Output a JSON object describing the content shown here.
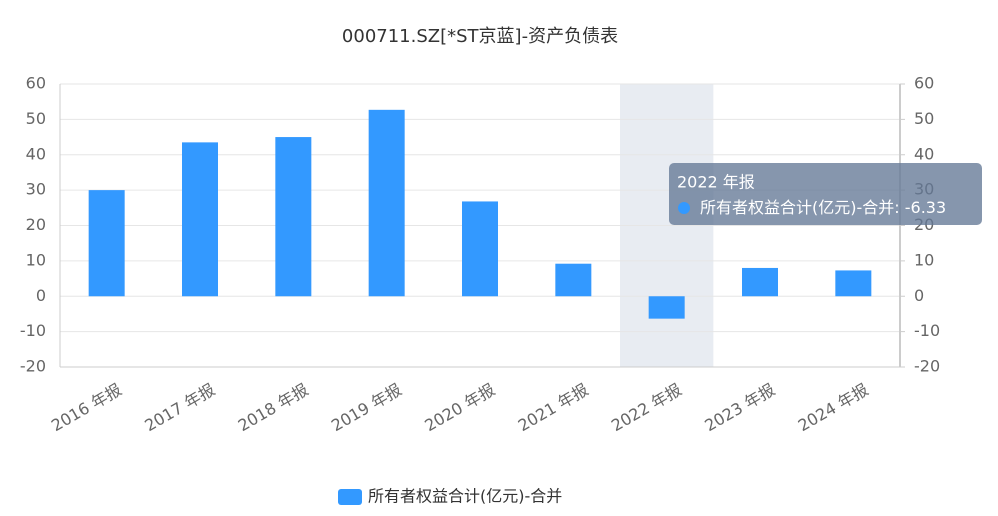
{
  "chart_data": {
    "type": "bar",
    "title": "000711.SZ[*ST京蓝]-资产负债表",
    "categories": [
      "2016 年报",
      "2017 年报",
      "2018 年报",
      "2019 年报",
      "2020 年报",
      "2021 年报",
      "2022 年报",
      "2023 年报",
      "2024 年报"
    ],
    "series": [
      {
        "name": "所有者权益合计(亿元)-合并",
        "color": "#3399ff",
        "values": [
          30,
          43.5,
          45,
          52.7,
          26.8,
          9.2,
          -6.33,
          8,
          7.3
        ]
      }
    ],
    "ylim": [
      -20,
      60
    ],
    "yticks": [
      -20,
      -10,
      0,
      10,
      20,
      30,
      40,
      50,
      60
    ],
    "y2lim": [
      -20,
      60
    ],
    "y2ticks": [
      -20,
      -10,
      0,
      10,
      20,
      30,
      40,
      50,
      60
    ],
    "grid": true,
    "legend": "bottom",
    "tooltip_index": 6
  }
}
